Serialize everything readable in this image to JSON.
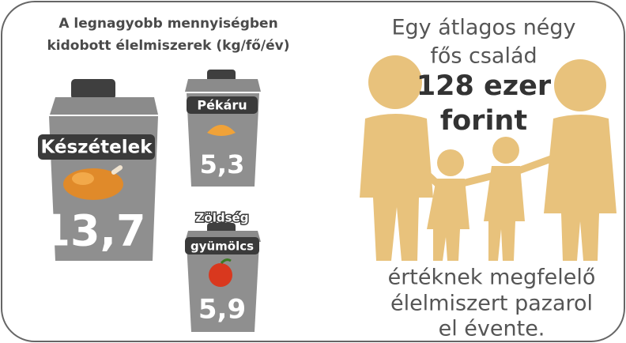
{
  "title": {
    "lines": [
      "A legnagyobb mennyiségben",
      "kidobott élelmiszerek (kg/fő/év)"
    ]
  },
  "bins": [
    {
      "label_lines": [
        "Készételek"
      ],
      "value": "13,7"
    },
    {
      "label_lines": [
        "Pékáru"
      ],
      "value": "5,3"
    },
    {
      "label_lines": [
        "Zöldség",
        "gyümölcs"
      ],
      "value": "5,9"
    }
  ],
  "family": {
    "intro_lines": [
      "Egy átlagos négy",
      "fős család"
    ],
    "amount_lines": [
      "128 ezer",
      "forint"
    ],
    "closing_lines": [
      "értéknek megfelelő",
      "élelmiszert pazarol",
      "el évente."
    ]
  }
}
